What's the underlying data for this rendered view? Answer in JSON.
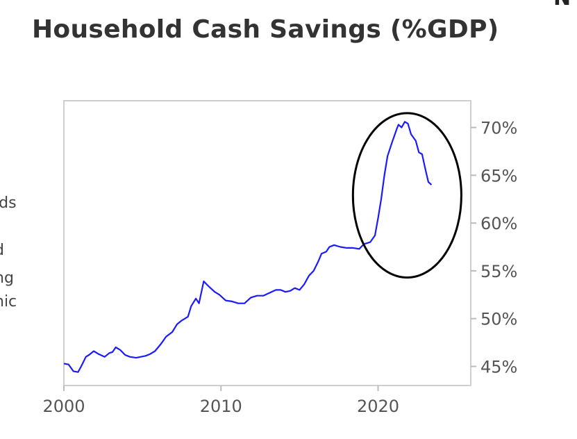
{
  "page": {
    "corner_fragment": "N",
    "side_fragments": [
      "lds",
      "d",
      "ng",
      "nic"
    ]
  },
  "chart_data": {
    "type": "line",
    "title": "Household Cash Savings (%GDP)",
    "xlabel": "",
    "ylabel": "",
    "xlim": [
      2000,
      2025.9
    ],
    "ylim": [
      43,
      72.8
    ],
    "x_ticks": [
      2000,
      2010,
      2020
    ],
    "y_ticks": [
      45,
      50,
      55,
      60,
      65,
      70
    ],
    "y_tick_labels": [
      "45%",
      "50%",
      "55%",
      "60%",
      "65%",
      "70%"
    ],
    "y_axis_side": "right",
    "grid": false,
    "legend": "none",
    "line_color": "#1a1aff",
    "annotation": {
      "type": "ellipse",
      "x_range": [
        2018.4,
        2025.3
      ],
      "y_range": [
        54.3,
        71.5
      ],
      "stroke": "#000000"
    },
    "series": [
      {
        "x": [
          2000.0,
          2000.3,
          2000.6,
          2000.9,
          2001.1,
          2001.4,
          2001.6,
          2001.9,
          2002.2,
          2002.6,
          2002.9,
          2003.1,
          2003.3,
          2003.6,
          2003.9,
          2004.2,
          2004.6,
          2004.9,
          2005.2,
          2005.5,
          2005.8,
          2006.2,
          2006.5,
          2006.9,
          2007.2,
          2007.5,
          2007.9,
          2008.1,
          2008.4,
          2008.6,
          2008.9,
          2009.2,
          2009.6,
          2009.9,
          2010.3,
          2010.7,
          2011.1,
          2011.5,
          2011.9,
          2012.3,
          2012.7,
          2013.1,
          2013.5,
          2013.8,
          2014.1,
          2014.4,
          2014.7,
          2015.0,
          2015.3,
          2015.6,
          2015.9,
          2016.2,
          2016.4,
          2016.7,
          2016.9,
          2017.2,
          2017.6,
          2018.0,
          2018.4,
          2018.8,
          2019.1,
          2019.5,
          2019.8,
          2020.0,
          2020.2,
          2020.4,
          2020.6,
          2020.9,
          2021.2,
          2021.3,
          2021.5,
          2021.7,
          2021.9,
          2022.1,
          2022.4,
          2022.6,
          2022.8,
          2023.0,
          2023.2,
          2023.4
        ],
        "values": [
          45.3,
          45.2,
          44.5,
          44.4,
          45.0,
          46.0,
          46.2,
          46.6,
          46.3,
          46.0,
          46.4,
          46.5,
          47.0,
          46.7,
          46.2,
          46.0,
          45.9,
          46.0,
          46.1,
          46.3,
          46.6,
          47.4,
          48.1,
          48.6,
          49.4,
          49.8,
          50.2,
          51.3,
          52.1,
          51.6,
          53.9,
          53.4,
          52.8,
          52.5,
          51.9,
          51.8,
          51.6,
          51.6,
          52.2,
          52.4,
          52.4,
          52.7,
          53.0,
          53.0,
          52.8,
          52.9,
          53.2,
          53.0,
          53.6,
          54.5,
          55.0,
          56.0,
          56.8,
          57.0,
          57.5,
          57.7,
          57.5,
          57.4,
          57.4,
          57.3,
          57.8,
          58.0,
          58.7,
          60.5,
          62.5,
          65.0,
          67.0,
          68.5,
          69.9,
          70.3,
          70.0,
          70.6,
          70.4,
          69.3,
          68.6,
          67.4,
          67.2,
          65.7,
          64.3,
          64.0
        ]
      }
    ]
  }
}
